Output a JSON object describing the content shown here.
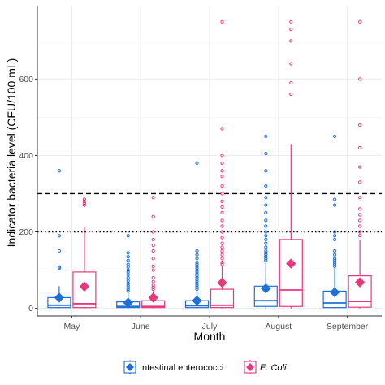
{
  "chart_data": {
    "type": "box",
    "title": "",
    "xlabel": "Month",
    "ylabel": "Indicator bacteria level (CFU/100 mL)",
    "categories": [
      "May",
      "June",
      "July",
      "August",
      "September"
    ],
    "ylim": [
      -20,
      790
    ],
    "yticks": [
      0,
      200,
      400,
      600
    ],
    "reference_lines": [
      {
        "value": 300,
        "style": "dashed"
      },
      {
        "value": 200,
        "style": "dotted"
      }
    ],
    "grid": true,
    "legend_position": "bottom",
    "series": [
      {
        "name": "Intestinal enterococci",
        "color": "#1f6fd8",
        "boxes": [
          {
            "q1": 2,
            "median": 8,
            "q3": 28,
            "lower": 0,
            "upper": 58,
            "mean": 28,
            "outliers": [
              105,
              108,
              150,
              190,
              360
            ]
          },
          {
            "q1": 2,
            "median": 5,
            "q3": 17,
            "lower": 0,
            "upper": 40,
            "mean": 15,
            "outliers": [
              45,
              50,
              55,
              60,
              65,
              72,
              80,
              88,
              95,
              100,
              108,
              115,
              125,
              135,
              145,
              190
            ]
          },
          {
            "q1": 2,
            "median": 7,
            "q3": 20,
            "lower": 0,
            "upper": 45,
            "mean": 20,
            "outliers": [
              50,
              55,
              60,
              65,
              70,
              75,
              80,
              85,
              90,
              95,
              100,
              105,
              110,
              115,
              120,
              130,
              140,
              150,
              380
            ]
          },
          {
            "q1": 5,
            "median": 20,
            "q3": 58,
            "lower": 0,
            "upper": 120,
            "mean": 52,
            "outliers": [
              125,
              130,
              135,
              140,
              145,
              150,
              160,
              170,
              180,
              190,
              200,
              215,
              230,
              250,
              270,
              290,
              320,
              360,
              405,
              450
            ]
          },
          {
            "q1": 2,
            "median": 14,
            "q3": 45,
            "lower": 0,
            "upper": 105,
            "mean": 42,
            "outliers": [
              110,
              115,
              120,
              125,
              130,
              140,
              150,
              180,
              190,
              200,
              270,
              285,
              450
            ]
          }
        ]
      },
      {
        "name": "E. Coli",
        "color": "#e8387d",
        "boxes": [
          {
            "q1": 2,
            "median": 12,
            "q3": 95,
            "lower": 0,
            "upper": 212,
            "mean": 57,
            "outliers": [
              270,
              275,
              280,
              285
            ]
          },
          {
            "q1": 2,
            "median": 5,
            "q3": 20,
            "lower": 0,
            "upper": 45,
            "mean": 28,
            "outliers": [
              50,
              55,
              60,
              70,
              80,
              100,
              110,
              130,
              150,
              165,
              180,
              200,
              240,
              290
            ]
          },
          {
            "q1": 2,
            "median": 8,
            "q3": 50,
            "lower": 0,
            "upper": 110,
            "mean": 67,
            "outliers": [
              115,
              120,
              130,
              140,
              150,
              160,
              170,
              185,
              200,
              215,
              230,
              250,
              265,
              280,
              300,
              320,
              345,
              360,
              380,
              400,
              470,
              750
            ]
          },
          {
            "q1": 5,
            "median": 48,
            "q3": 180,
            "lower": 0,
            "upper": 430,
            "mean": 117,
            "outliers": [
              560,
              590,
              640,
              700,
              730,
              750
            ]
          },
          {
            "q1": 3,
            "median": 18,
            "q3": 85,
            "lower": 0,
            "upper": 180,
            "mean": 68,
            "outliers": [
              190,
              200,
              215,
              230,
              245,
              260,
              290,
              330,
              370,
              420,
              480,
              600,
              750
            ]
          }
        ]
      }
    ]
  }
}
